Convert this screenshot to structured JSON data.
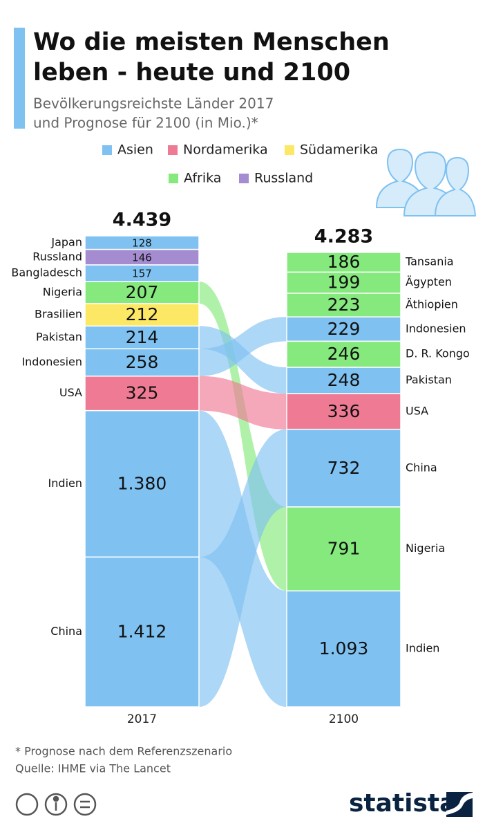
{
  "chart_data": {
    "type": "stacked-bar",
    "title": [
      "Wo die meisten Menschen",
      "leben - heute und 2100"
    ],
    "subtitle": [
      "Bevölkerungsreichste Länder 2017",
      "und Prognose für 2100 (in Mio.)*"
    ],
    "legend": [
      {
        "name": "Asien",
        "color": "#7fc1f1"
      },
      {
        "name": "Nordamerika",
        "color": "#ee7a93"
      },
      {
        "name": "Südamerika",
        "color": "#fde865"
      },
      {
        "name": "Afrika",
        "color": "#85e97d"
      },
      {
        "name": "Russland",
        "color": "#a58bd0"
      }
    ],
    "columns": [
      {
        "label": "2017",
        "total": 4439,
        "total_label": "4.439",
        "categories": [
          "Japan",
          "Russland",
          "Bangladesch",
          "Nigeria",
          "Brasilien",
          "Pakistan",
          "Indonesien",
          "USA",
          "Indien",
          "China"
        ],
        "values": [
          128,
          146,
          157,
          207,
          212,
          214,
          258,
          325,
          1380,
          1412
        ],
        "value_labels": [
          "128",
          "146",
          "157",
          "207",
          "212",
          "214",
          "258",
          "325",
          "1.380",
          "1.412"
        ],
        "regions": [
          "Asien",
          "Russland",
          "Asien",
          "Afrika",
          "Südamerika",
          "Asien",
          "Asien",
          "Nordamerika",
          "Asien",
          "Asien"
        ]
      },
      {
        "label": "2100",
        "total": 4283,
        "total_label": "4.283",
        "categories": [
          "Tansania",
          "Ägypten",
          "Äthiopien",
          "Indonesien",
          "D. R. Kongo",
          "Pakistan",
          "USA",
          "China",
          "Nigeria",
          "Indien"
        ],
        "values": [
          186,
          199,
          223,
          229,
          246,
          248,
          336,
          732,
          791,
          1093
        ],
        "value_labels": [
          "186",
          "199",
          "223",
          "229",
          "246",
          "248",
          "336",
          "732",
          "791",
          "1.093"
        ],
        "regions": [
          "Afrika",
          "Afrika",
          "Afrika",
          "Asien",
          "Afrika",
          "Asien",
          "Nordamerika",
          "Asien",
          "Afrika",
          "Asien"
        ]
      }
    ],
    "footnote": "* Prognose nach dem Referenzszenario",
    "source": "Quelle: IHME via The Lancet",
    "brand": "statista"
  }
}
